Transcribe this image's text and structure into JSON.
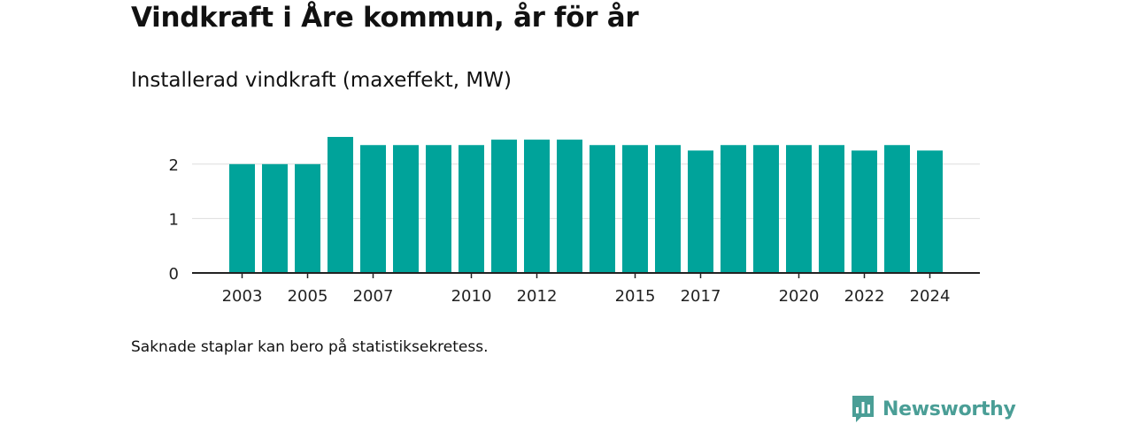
{
  "title": "Vindkraft i Åre kommun, år för år",
  "subtitle": "Installerad vindkraft (maxeffekt, MW)",
  "footnote": "Saknade staplar kan bero på statistiksekretess.",
  "brand": {
    "name": "Newsworthy",
    "icon": "newsworthy-logo-icon",
    "color": "#4a9e96"
  },
  "chart_data": {
    "type": "bar",
    "categories": [
      "2003",
      "2004",
      "2005",
      "2006",
      "2007",
      "2008",
      "2009",
      "2010",
      "2011",
      "2012",
      "2013",
      "2014",
      "2015",
      "2016",
      "2017",
      "2018",
      "2019",
      "2020",
      "2021",
      "2022",
      "2023",
      "2024"
    ],
    "values": [
      2.0,
      2.0,
      2.0,
      2.5,
      2.35,
      2.35,
      2.35,
      2.35,
      2.45,
      2.45,
      2.45,
      2.35,
      2.35,
      2.35,
      2.25,
      2.35,
      2.35,
      2.35,
      2.35,
      2.25,
      2.35,
      2.25
    ],
    "xticks": [
      "2003",
      "2005",
      "2007",
      "2010",
      "2012",
      "2015",
      "2017",
      "2020",
      "2022",
      "2024"
    ],
    "yticks": [
      0,
      1,
      2
    ],
    "ylim": [
      0,
      2.5
    ],
    "xlabel": "",
    "ylabel": "",
    "grid": true,
    "bar_color": "#00a39a",
    "grid_color": "#dddddd",
    "axis_color": "#222222"
  }
}
